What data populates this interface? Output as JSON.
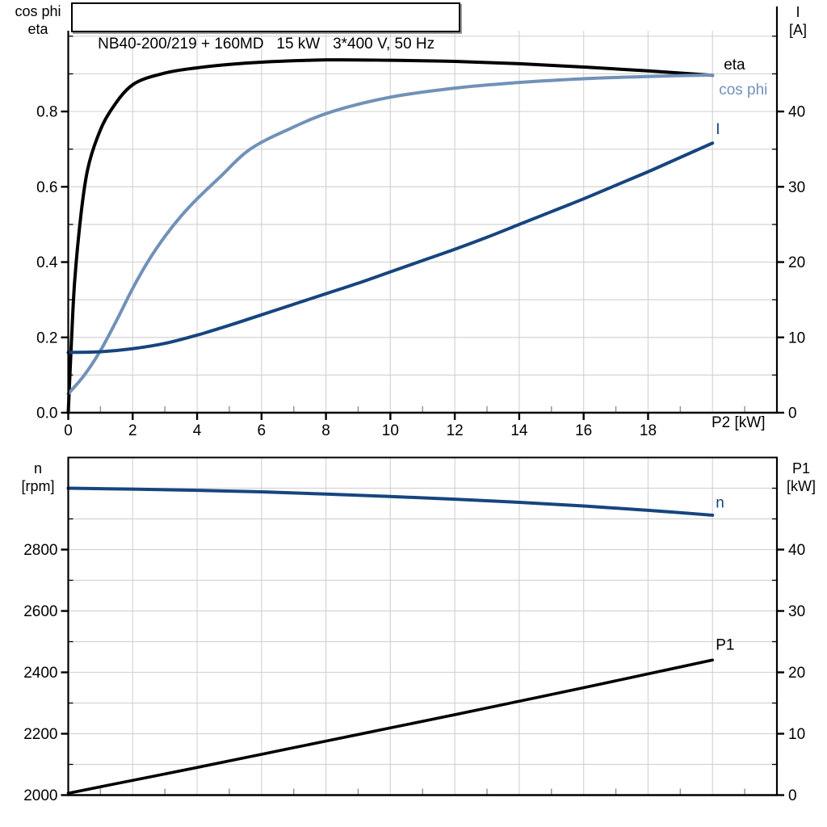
{
  "title": "NB40-200/219 + 160MD   15 kW   3*400 V, 50 Hz",
  "colors": {
    "black": "#000000",
    "cos_phi_blue": "#7191b8",
    "dark_blue": "#16457e",
    "grid": "#d4d4d4",
    "minor_tick": "#8f8f8f",
    "axis": "#000000",
    "background": "#ffffff"
  },
  "chart_data": [
    {
      "id": "upper-motor-chart",
      "type": "line",
      "grid": true,
      "legend_position": "right-inline",
      "x_axis": {
        "title": "P2 [kW]",
        "range": [
          0,
          22
        ],
        "ticks": [
          0,
          2,
          4,
          6,
          8,
          10,
          12,
          14,
          16,
          18
        ],
        "tick_labels": [
          "0",
          "2",
          "4",
          "6",
          "8",
          "10",
          "12",
          "14",
          "16",
          "18"
        ],
        "minor_ticks": [
          1,
          3,
          5,
          7,
          9,
          11,
          13,
          15,
          17,
          19,
          21
        ],
        "grid_values": [
          2,
          4,
          6,
          8,
          10,
          12,
          14,
          16,
          18,
          20
        ]
      },
      "y_left": {
        "title_lines": [
          "cos phi",
          "eta"
        ],
        "range": [
          0,
          1.0146
        ],
        "ticks": [
          0,
          0.2,
          0.4,
          0.6,
          0.8
        ],
        "tick_labels": [
          "0.0",
          "0.2",
          "0.4",
          "0.6",
          "0.8"
        ],
        "minor_ticks": [
          0.1,
          0.3,
          0.5,
          0.7,
          0.9,
          1.0
        ],
        "grid_values": [
          0.1,
          0.2,
          0.3,
          0.4,
          0.5,
          0.6,
          0.7,
          0.8,
          0.9,
          1.0
        ]
      },
      "y_right": {
        "title_lines": [
          "I",
          "[A]"
        ],
        "range": [
          0,
          50.73
        ],
        "ticks": [
          0,
          10,
          20,
          30,
          40
        ],
        "tick_labels": [
          "0",
          "10",
          "20",
          "30",
          "40"
        ],
        "minor_ticks": [
          5,
          15,
          25,
          35,
          45,
          50
        ]
      },
      "series": [
        {
          "name": "eta",
          "label": "eta",
          "axis": "left",
          "color": "black",
          "width": 4,
          "label_at": [
            20.35,
            0.912
          ],
          "x": [
            0,
            0.1,
            0.2,
            0.4,
            0.6,
            0.9,
            1.3,
            2,
            3,
            4,
            5,
            6,
            8,
            10,
            12,
            14,
            16,
            18,
            20
          ],
          "y": [
            0,
            0.19,
            0.35,
            0.53,
            0.645,
            0.73,
            0.8,
            0.871,
            0.902,
            0.916,
            0.925,
            0.931,
            0.937,
            0.936,
            0.933,
            0.927,
            0.918,
            0.908,
            0.896
          ]
        },
        {
          "name": "cos phi",
          "label": "cos phi",
          "axis": "left",
          "color": "cos_phi_blue",
          "width": 4,
          "label_at": [
            20.2,
            0.845
          ],
          "x": [
            0,
            0.5,
            1,
            1.5,
            2,
            2.5,
            3,
            3.5,
            4,
            4.7,
            5.65,
            6.9,
            8.2,
            10,
            12,
            14,
            16,
            18,
            20
          ],
          "y": [
            0.05,
            0.1,
            0.165,
            0.245,
            0.33,
            0.405,
            0.468,
            0.522,
            0.568,
            0.625,
            0.7,
            0.755,
            0.8,
            0.838,
            0.862,
            0.877,
            0.887,
            0.893,
            0.897
          ]
        },
        {
          "name": "I",
          "label": "I",
          "axis": "right",
          "color": "dark_blue",
          "width": 4,
          "label_at": [
            20.1,
            37.0
          ],
          "x": [
            0,
            1,
            2,
            3,
            4,
            5,
            6,
            7,
            8,
            9,
            10,
            11,
            12,
            13,
            14,
            15,
            16,
            17,
            18,
            19,
            20
          ],
          "y": [
            8.0,
            8.1,
            8.5,
            9.2,
            10.3,
            11.6,
            13.0,
            14.4,
            15.8,
            17.2,
            18.7,
            20.2,
            21.7,
            23.3,
            25.0,
            26.7,
            28.4,
            30.2,
            32.0,
            33.9,
            35.8
          ]
        }
      ]
    },
    {
      "id": "lower-motor-chart",
      "type": "line",
      "grid": true,
      "legend_position": "right-inline",
      "x_axis": {
        "title": "",
        "range": [
          0,
          22
        ],
        "ticks": [],
        "tick_labels": [],
        "minor_ticks": [
          1,
          3,
          5,
          7,
          9,
          11,
          13,
          15,
          17,
          19,
          21
        ],
        "grid_values": [
          2,
          4,
          6,
          8,
          10,
          12,
          14,
          16,
          18,
          20
        ]
      },
      "y_left": {
        "title_lines": [
          "n",
          "[rpm]"
        ],
        "range": [
          2000,
          3100
        ],
        "ticks": [
          2000,
          2200,
          2400,
          2600,
          2800
        ],
        "tick_labels": [
          "2000",
          "2200",
          "2400",
          "2600",
          "2800"
        ],
        "minor_ticks": [
          2100,
          2300,
          2500,
          2700,
          2900,
          3000
        ],
        "grid_values": [
          2100,
          2200,
          2300,
          2400,
          2500,
          2600,
          2700,
          2800,
          2900,
          3000
        ]
      },
      "y_right": {
        "title_lines": [
          "P1",
          "[kW]"
        ],
        "range": [
          0,
          55
        ],
        "ticks": [
          0,
          10,
          20,
          30,
          40
        ],
        "tick_labels": [
          "0",
          "10",
          "20",
          "30",
          "40"
        ],
        "minor_ticks": [
          5,
          15,
          25,
          35,
          45,
          50
        ]
      },
      "series": [
        {
          "name": "n",
          "label": "n",
          "axis": "left",
          "color": "dark_blue",
          "width": 4,
          "label_at": [
            20.1,
            2937
          ],
          "x": [
            0,
            2,
            4,
            6,
            8,
            10,
            12,
            14,
            16,
            18,
            20
          ],
          "y": [
            3000,
            2997,
            2993,
            2988,
            2981,
            2973,
            2964,
            2954,
            2942,
            2928,
            2912
          ]
        },
        {
          "name": "P1",
          "label": "P1",
          "axis": "right",
          "color": "black",
          "width": 3.6,
          "label_at": [
            20.1,
            23.66
          ],
          "x": [
            0,
            2,
            4,
            6,
            8,
            10,
            12,
            14,
            16,
            18,
            20
          ],
          "y": [
            0.3,
            2.4,
            4.5,
            6.65,
            8.8,
            10.95,
            13.1,
            15.3,
            17.5,
            19.75,
            22.0
          ]
        }
      ]
    }
  ]
}
